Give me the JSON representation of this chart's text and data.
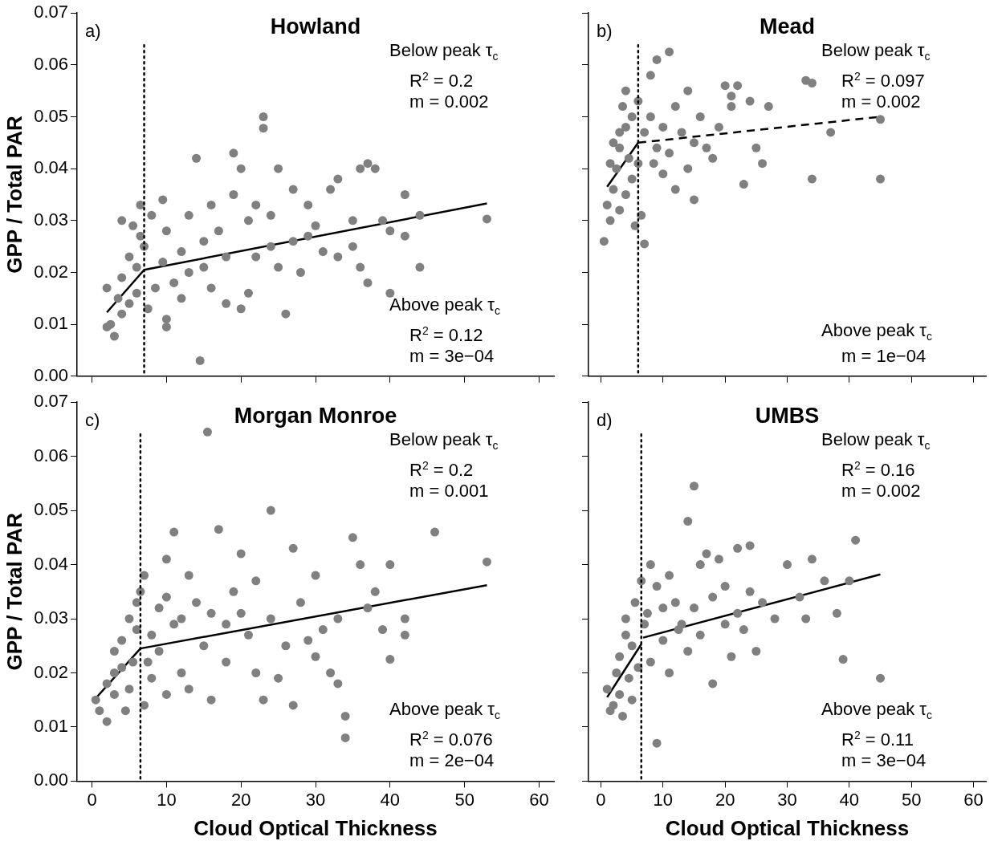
{
  "chart_data": [
    {
      "type": "scatter",
      "title": "Howland",
      "ylabel": "GPP / Total PAR",
      "xlim": [
        -2,
        62
      ],
      "ylim": [
        0,
        0.07
      ],
      "xticks": [
        0,
        10,
        20,
        30,
        40,
        50,
        60
      ],
      "yticks": [
        {
          "value": 0,
          "label": "0.00"
        },
        0.01,
        0.02,
        0.03,
        0.04,
        0.05,
        0.06,
        0.07
      ],
      "tick_labels": "y",
      "grid": false,
      "legend": false,
      "marker": "circle",
      "annotations": [
        "a)",
        "Below peak τ$_{c}$",
        "R$^{2}$ = 0.2",
        "m = 0.002",
        "Above peak τ$_{c}$",
        "R$^{2}$ = 0.12",
        "m = 3e−04"
      ],
      "ref_lines": [
        {
          "axis": "x",
          "value": 7,
          "line_style": "dotted",
          "color": "#000000"
        }
      ],
      "series": [
        {
          "type": "scatter",
          "color": "#808080",
          "x": [
            14.5,
            3,
            2,
            2.5,
            4,
            5,
            6,
            3.5,
            2,
            4,
            6,
            5,
            7,
            6.5,
            5.5,
            4,
            6.5,
            8,
            9.5,
            10,
            9.5,
            10,
            10,
            11,
            12,
            12,
            13,
            14,
            15,
            16,
            16,
            17,
            18,
            19,
            19,
            20,
            20,
            21,
            22,
            22,
            23,
            23,
            24,
            25,
            25,
            26,
            27,
            28,
            29,
            29,
            30,
            31,
            32,
            33,
            35,
            35,
            36,
            36,
            37,
            37,
            38,
            39,
            40,
            40,
            42,
            42,
            44,
            44,
            53,
            7.5,
            8.5,
            13,
            15,
            18,
            21,
            24,
            27,
            33
          ],
          "values": [
            0.003,
            0.0077,
            0.0095,
            0.01,
            0.012,
            0.014,
            0.016,
            0.015,
            0.017,
            0.019,
            0.021,
            0.023,
            0.025,
            0.027,
            0.029,
            0.03,
            0.033,
            0.031,
            0.034,
            0.028,
            0.022,
            0.011,
            0.0095,
            0.018,
            0.015,
            0.024,
            0.02,
            0.042,
            0.026,
            0.033,
            0.017,
            0.028,
            0.023,
            0.035,
            0.043,
            0.04,
            0.013,
            0.03,
            0.033,
            0.023,
            0.05,
            0.0478,
            0.025,
            0.021,
            0.04,
            0.012,
            0.036,
            0.02,
            0.033,
            0.027,
            0.029,
            0.024,
            0.036,
            0.038,
            0.025,
            0.03,
            0.04,
            0.021,
            0.018,
            0.041,
            0.04,
            0.03,
            0.016,
            0.028,
            0.035,
            0.027,
            0.031,
            0.021,
            0.0303,
            0.013,
            0.017,
            0.031,
            0.021,
            0.014,
            0.016,
            0.031,
            0.026,
            0.023
          ]
        },
        {
          "type": "line",
          "color": "#000000",
          "marker": "none",
          "line_style": "solid",
          "x": [
            2,
            7
          ],
          "values": [
            0.0123,
            0.0205
          ]
        },
        {
          "type": "line",
          "color": "#000000",
          "marker": "none",
          "line_style": "solid",
          "x": [
            7,
            53
          ],
          "values": [
            0.0205,
            0.0333
          ]
        }
      ]
    },
    {
      "type": "scatter",
      "title": "Mead",
      "xlim": [
        -2,
        62
      ],
      "ylim": [
        0,
        0.07
      ],
      "xticks": [
        0,
        10,
        20,
        30,
        40,
        50,
        60
      ],
      "yticks": [
        0,
        0.01,
        0.02,
        0.03,
        0.04,
        0.05,
        0.06,
        0.07
      ],
      "tick_labels": false,
      "grid": false,
      "legend": false,
      "marker": "circle",
      "annotations": [
        "b)",
        "Below peak τ$_{c}$",
        "R$^{2}$ = 0.097",
        "m = 0.002",
        "Above peak τ$_{c}$",
        "m = 1e−04"
      ],
      "ref_lines": [
        {
          "axis": "x",
          "value": 6,
          "line_style": "dotted",
          "color": "#000000"
        }
      ],
      "series": [
        {
          "type": "scatter",
          "color": "#808080",
          "x": [
            0.5,
            1,
            1.5,
            2,
            2.5,
            3,
            3,
            3.5,
            4,
            4.5,
            5,
            5,
            5.5,
            3,
            2,
            4,
            6,
            6,
            7,
            7,
            8,
            8,
            9,
            9,
            10,
            10,
            11,
            11,
            12,
            12,
            13,
            14,
            14,
            15,
            15,
            16,
            18,
            19,
            20,
            21,
            21,
            22,
            23,
            24,
            25,
            26,
            27,
            33,
            34,
            34,
            37,
            45,
            45,
            1.5,
            4,
            6.5,
            8.5,
            17
          ],
          "values": [
            0.026,
            0.033,
            0.03,
            0.036,
            0.04,
            0.044,
            0.047,
            0.052,
            0.055,
            0.042,
            0.05,
            0.038,
            0.029,
            0.032,
            0.045,
            0.035,
            0.053,
            0.041,
            0.047,
            0.0255,
            0.058,
            0.05,
            0.061,
            0.044,
            0.048,
            0.039,
            0.0625,
            0.043,
            0.036,
            0.052,
            0.047,
            0.055,
            0.04,
            0.034,
            0.045,
            0.05,
            0.042,
            0.048,
            0.056,
            0.052,
            0.054,
            0.056,
            0.037,
            0.053,
            0.044,
            0.041,
            0.052,
            0.057,
            0.0565,
            0.038,
            0.047,
            0.038,
            0.0495,
            0.041,
            0.048,
            0.031,
            0.041,
            0.044
          ]
        },
        {
          "type": "line",
          "color": "#000000",
          "marker": "none",
          "line_style": "solid",
          "x": [
            1,
            6
          ],
          "values": [
            0.0365,
            0.045
          ]
        },
        {
          "type": "line",
          "color": "#000000",
          "marker": "none",
          "line_style": "dashed",
          "x": [
            6,
            45
          ],
          "values": [
            0.045,
            0.05
          ]
        }
      ]
    },
    {
      "type": "scatter",
      "title": "Morgan Monroe",
      "xlabel": "Cloud Optical Thickness",
      "ylabel": "GPP / Total PAR",
      "xlim": [
        -2,
        62
      ],
      "ylim": [
        0,
        0.07
      ],
      "xticks": [
        0,
        10,
        20,
        30,
        40,
        50,
        60
      ],
      "yticks": [
        {
          "value": 0,
          "label": "0.00"
        },
        0.01,
        0.02,
        0.03,
        0.04,
        0.05,
        0.06,
        0.07
      ],
      "grid": false,
      "legend": false,
      "marker": "circle",
      "annotations": [
        "c)",
        "Below peak τ$_{c}$",
        "R$^{2}$ = 0.2",
        "m = 0.001",
        "Above peak τ$_{c}$",
        "R$^{2}$ = 0.076",
        "m = 2e−04"
      ],
      "ref_lines": [
        {
          "axis": "x",
          "value": 6.5,
          "line_style": "dotted",
          "color": "#000000"
        }
      ],
      "series": [
        {
          "type": "scatter",
          "color": "#808080",
          "x": [
            0.5,
            1,
            2,
            2,
            3,
            3,
            4,
            4,
            5,
            5,
            5.5,
            6,
            6,
            6.5,
            7,
            7,
            8,
            8,
            9,
            9,
            10,
            10,
            10,
            11,
            11,
            12,
            12,
            13,
            14,
            15,
            15.5,
            16,
            17,
            18,
            18,
            19,
            20,
            20,
            21,
            22,
            22,
            23,
            24,
            24,
            25,
            26,
            27,
            27,
            28,
            29,
            30,
            30,
            31,
            32,
            33,
            33,
            34,
            34,
            35,
            36,
            37,
            38,
            39,
            40,
            40,
            42,
            42,
            46,
            53,
            3,
            4.5,
            7.5,
            13,
            16
          ],
          "values": [
            0.015,
            0.013,
            0.011,
            0.018,
            0.02,
            0.024,
            0.021,
            0.026,
            0.017,
            0.03,
            0.022,
            0.028,
            0.033,
            0.035,
            0.038,
            0.014,
            0.019,
            0.027,
            0.032,
            0.024,
            0.041,
            0.034,
            0.016,
            0.029,
            0.046,
            0.02,
            0.03,
            0.017,
            0.033,
            0.025,
            0.0645,
            0.015,
            0.0465,
            0.029,
            0.022,
            0.035,
            0.042,
            0.031,
            0.027,
            0.02,
            0.037,
            0.015,
            0.05,
            0.03,
            0.019,
            0.025,
            0.043,
            0.014,
            0.033,
            0.026,
            0.038,
            0.023,
            0.028,
            0.02,
            0.03,
            0.018,
            0.012,
            0.008,
            0.045,
            0.04,
            0.032,
            0.035,
            0.028,
            0.04,
            0.0225,
            0.03,
            0.027,
            0.046,
            0.0405,
            0.016,
            0.013,
            0.022,
            0.038,
            0.031
          ]
        },
        {
          "type": "line",
          "color": "#000000",
          "marker": "none",
          "line_style": "solid",
          "x": [
            0.3,
            6.5
          ],
          "values": [
            0.015,
            0.0245
          ]
        },
        {
          "type": "line",
          "color": "#000000",
          "marker": "none",
          "line_style": "solid",
          "x": [
            6.5,
            53
          ],
          "values": [
            0.0245,
            0.0362
          ]
        }
      ]
    },
    {
      "type": "scatter",
      "title": "UMBS",
      "xlabel": "Cloud Optical Thickness",
      "xlim": [
        -2,
        62
      ],
      "ylim": [
        0,
        0.07
      ],
      "xticks": [
        0,
        10,
        20,
        30,
        40,
        50,
        60
      ],
      "yticks": [
        0,
        0.01,
        0.02,
        0.03,
        0.04,
        0.05,
        0.06,
        0.07
      ],
      "tick_labels": "x",
      "grid": false,
      "legend": false,
      "marker": "circle",
      "annotations": [
        "d)",
        "Below peak τ$_{c}$",
        "R$^{2}$ = 0.16",
        "m = 0.002",
        "Above peak τ$_{c}$",
        "R$^{2}$ = 0.11",
        "m = 3e−04"
      ],
      "ref_lines": [
        {
          "axis": "x",
          "value": 6.5,
          "line_style": "dotted",
          "color": "#000000"
        }
      ],
      "series": [
        {
          "type": "scatter",
          "color": "#808080",
          "x": [
            1,
            1.5,
            2,
            2.5,
            3,
            3,
            4,
            4,
            4.5,
            5,
            5,
            5.5,
            6,
            6.5,
            7,
            8,
            8,
            9,
            9,
            10,
            10,
            11,
            11,
            12,
            13,
            14,
            14,
            15,
            15,
            16,
            16,
            17,
            18,
            18,
            19,
            20,
            20,
            21,
            22,
            22,
            23,
            24,
            24,
            25,
            26,
            28,
            30,
            32,
            33,
            34,
            36,
            38,
            39,
            40,
            41,
            45,
            3.5,
            7.5,
            12.5
          ],
          "values": [
            0.017,
            0.013,
            0.014,
            0.02,
            0.023,
            0.016,
            0.027,
            0.03,
            0.019,
            0.025,
            0.015,
            0.033,
            0.021,
            0.037,
            0.029,
            0.04,
            0.022,
            0.007,
            0.036,
            0.032,
            0.026,
            0.038,
            0.02,
            0.033,
            0.029,
            0.048,
            0.024,
            0.0545,
            0.032,
            0.04,
            0.027,
            0.042,
            0.034,
            0.018,
            0.041,
            0.036,
            0.029,
            0.023,
            0.043,
            0.031,
            0.028,
            0.0435,
            0.035,
            0.024,
            0.033,
            0.03,
            0.04,
            0.034,
            0.03,
            0.041,
            0.037,
            0.031,
            0.0225,
            0.037,
            0.0445,
            0.019,
            0.012,
            0.031,
            0.028
          ]
        },
        {
          "type": "line",
          "color": "#000000",
          "marker": "none",
          "line_style": "solid",
          "x": [
            1,
            6.5
          ],
          "values": [
            0.0155,
            0.0253
          ]
        },
        {
          "type": "line",
          "color": "#000000",
          "marker": "none",
          "line_style": "solid",
          "x": [
            6.8,
            45
          ],
          "values": [
            0.0265,
            0.0382
          ]
        }
      ]
    }
  ]
}
